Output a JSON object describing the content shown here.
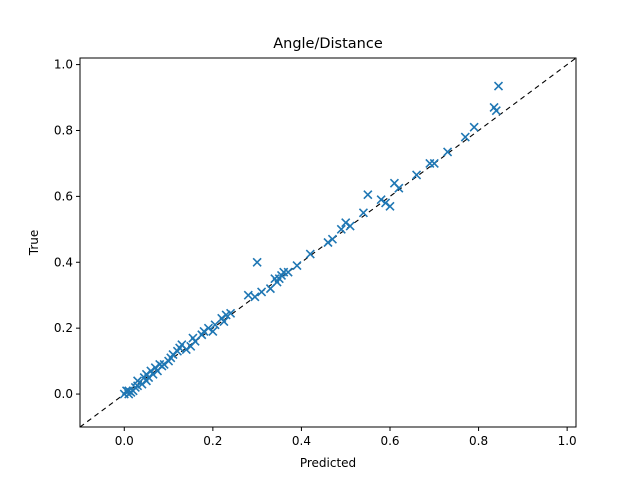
{
  "chart_data": {
    "type": "scatter",
    "title": "Angle/Distance",
    "xlabel": "Predicted",
    "ylabel": "True",
    "xlim": [
      -0.1,
      1.02
    ],
    "ylim": [
      -0.1,
      1.02
    ],
    "xticks": [
      0.0,
      0.2,
      0.4,
      0.6,
      0.8,
      1.0
    ],
    "yticks": [
      0.0,
      0.2,
      0.4,
      0.6,
      0.8,
      1.0
    ],
    "xtick_labels": [
      "0.0",
      "0.2",
      "0.4",
      "0.6",
      "0.8",
      "1.0"
    ],
    "ytick_labels": [
      "0.0",
      "0.2",
      "0.4",
      "0.6",
      "0.8",
      "1.0"
    ],
    "grid": false,
    "marker": "x",
    "marker_color": "#1f77b4",
    "reference_line": {
      "style": "dashed",
      "color": "#000000",
      "from": [
        -0.1,
        -0.1
      ],
      "to": [
        1.02,
        1.02
      ]
    },
    "points": [
      [
        0.0,
        0.0
      ],
      [
        0.005,
        0.01
      ],
      [
        0.01,
        0.0
      ],
      [
        0.015,
        0.005
      ],
      [
        0.01,
        0.01
      ],
      [
        0.02,
        0.01
      ],
      [
        0.025,
        0.02
      ],
      [
        0.03,
        0.025
      ],
      [
        0.03,
        0.04
      ],
      [
        0.04,
        0.03
      ],
      [
        0.045,
        0.05
      ],
      [
        0.05,
        0.04
      ],
      [
        0.05,
        0.06
      ],
      [
        0.055,
        0.05
      ],
      [
        0.06,
        0.07
      ],
      [
        0.065,
        0.06
      ],
      [
        0.07,
        0.08
      ],
      [
        0.075,
        0.07
      ],
      [
        0.08,
        0.09
      ],
      [
        0.085,
        0.085
      ],
      [
        0.09,
        0.09
      ],
      [
        0.1,
        0.1
      ],
      [
        0.105,
        0.11
      ],
      [
        0.11,
        0.12
      ],
      [
        0.12,
        0.13
      ],
      [
        0.125,
        0.14
      ],
      [
        0.13,
        0.15
      ],
      [
        0.14,
        0.135
      ],
      [
        0.15,
        0.145
      ],
      [
        0.155,
        0.17
      ],
      [
        0.16,
        0.16
      ],
      [
        0.175,
        0.18
      ],
      [
        0.18,
        0.19
      ],
      [
        0.19,
        0.2
      ],
      [
        0.2,
        0.19
      ],
      [
        0.205,
        0.21
      ],
      [
        0.22,
        0.23
      ],
      [
        0.225,
        0.22
      ],
      [
        0.23,
        0.24
      ],
      [
        0.24,
        0.245
      ],
      [
        0.28,
        0.3
      ],
      [
        0.295,
        0.295
      ],
      [
        0.3,
        0.4
      ],
      [
        0.31,
        0.31
      ],
      [
        0.33,
        0.32
      ],
      [
        0.34,
        0.35
      ],
      [
        0.345,
        0.34
      ],
      [
        0.35,
        0.35
      ],
      [
        0.355,
        0.36
      ],
      [
        0.36,
        0.37
      ],
      [
        0.37,
        0.37
      ],
      [
        0.39,
        0.39
      ],
      [
        0.42,
        0.425
      ],
      [
        0.46,
        0.46
      ],
      [
        0.47,
        0.47
      ],
      [
        0.49,
        0.5
      ],
      [
        0.5,
        0.52
      ],
      [
        0.51,
        0.51
      ],
      [
        0.54,
        0.55
      ],
      [
        0.55,
        0.605
      ],
      [
        0.58,
        0.59
      ],
      [
        0.59,
        0.58
      ],
      [
        0.6,
        0.57
      ],
      [
        0.61,
        0.64
      ],
      [
        0.62,
        0.625
      ],
      [
        0.66,
        0.665
      ],
      [
        0.69,
        0.7
      ],
      [
        0.7,
        0.7
      ],
      [
        0.73,
        0.735
      ],
      [
        0.77,
        0.78
      ],
      [
        0.79,
        0.81
      ],
      [
        0.835,
        0.87
      ],
      [
        0.84,
        0.86
      ],
      [
        0.845,
        0.935
      ]
    ]
  }
}
